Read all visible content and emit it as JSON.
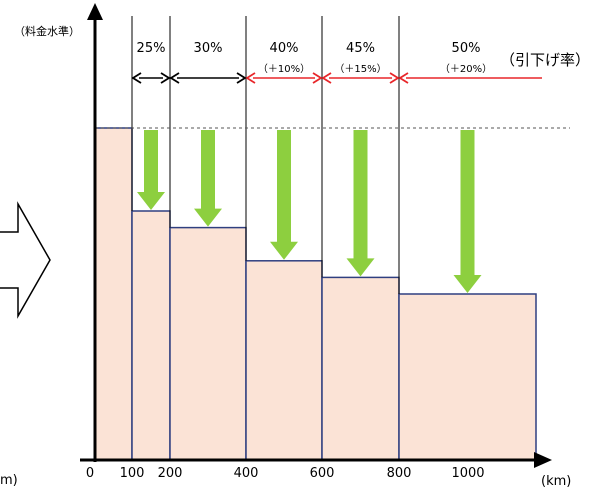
{
  "chart_data": {
    "type": "bar",
    "ylabel": "（料金水準）",
    "xlabel": "(km)",
    "xlabel_left_fragment": "m)",
    "rate_label": "（引下げ率）",
    "x_ticks": [
      {
        "label": "0",
        "x": 0
      },
      {
        "label": "100",
        "x": 100
      },
      {
        "label": "200",
        "x": 200
      },
      {
        "label": "400",
        "x": 400
      },
      {
        "label": "600",
        "x": 600
      },
      {
        "label": "800",
        "x": 800
      },
      {
        "label": "1000",
        "x": 1000
      }
    ],
    "bars": [
      {
        "x_start": 0,
        "x_end": 100,
        "level": 1.0
      },
      {
        "x_start": 100,
        "x_end": 200,
        "level": 0.75
      },
      {
        "x_start": 200,
        "x_end": 400,
        "level": 0.7
      },
      {
        "x_start": 400,
        "x_end": 600,
        "level": 0.6
      },
      {
        "x_start": 600,
        "x_end": 800,
        "level": 0.55
      },
      {
        "x_start": 800,
        "x_end": 1100,
        "level": 0.5
      }
    ],
    "reductions": [
      {
        "x_start": 100,
        "x_end": 200,
        "rate": "25%",
        "extra": "",
        "highlight": false
      },
      {
        "x_start": 200,
        "x_end": 400,
        "rate": "30%",
        "extra": "",
        "highlight": false
      },
      {
        "x_start": 400,
        "x_end": 600,
        "rate": "40%",
        "extra": "（＋10%）",
        "highlight": true
      },
      {
        "x_start": 600,
        "x_end": 800,
        "rate": "45%",
        "extra": "（＋15%）",
        "highlight": true
      },
      {
        "x_start": 800,
        "x_end": 1100,
        "rate": "50%",
        "extra": "（＋20%）",
        "highlight": true
      }
    ],
    "colors": {
      "bar_fill": "#fbe3d6",
      "bar_stroke": "#2f3f80",
      "arrow_green": "#8dcf3f",
      "highlight_red": "#e8262a",
      "text_black": "#000000",
      "dashed": "#555555"
    },
    "grid": false
  }
}
